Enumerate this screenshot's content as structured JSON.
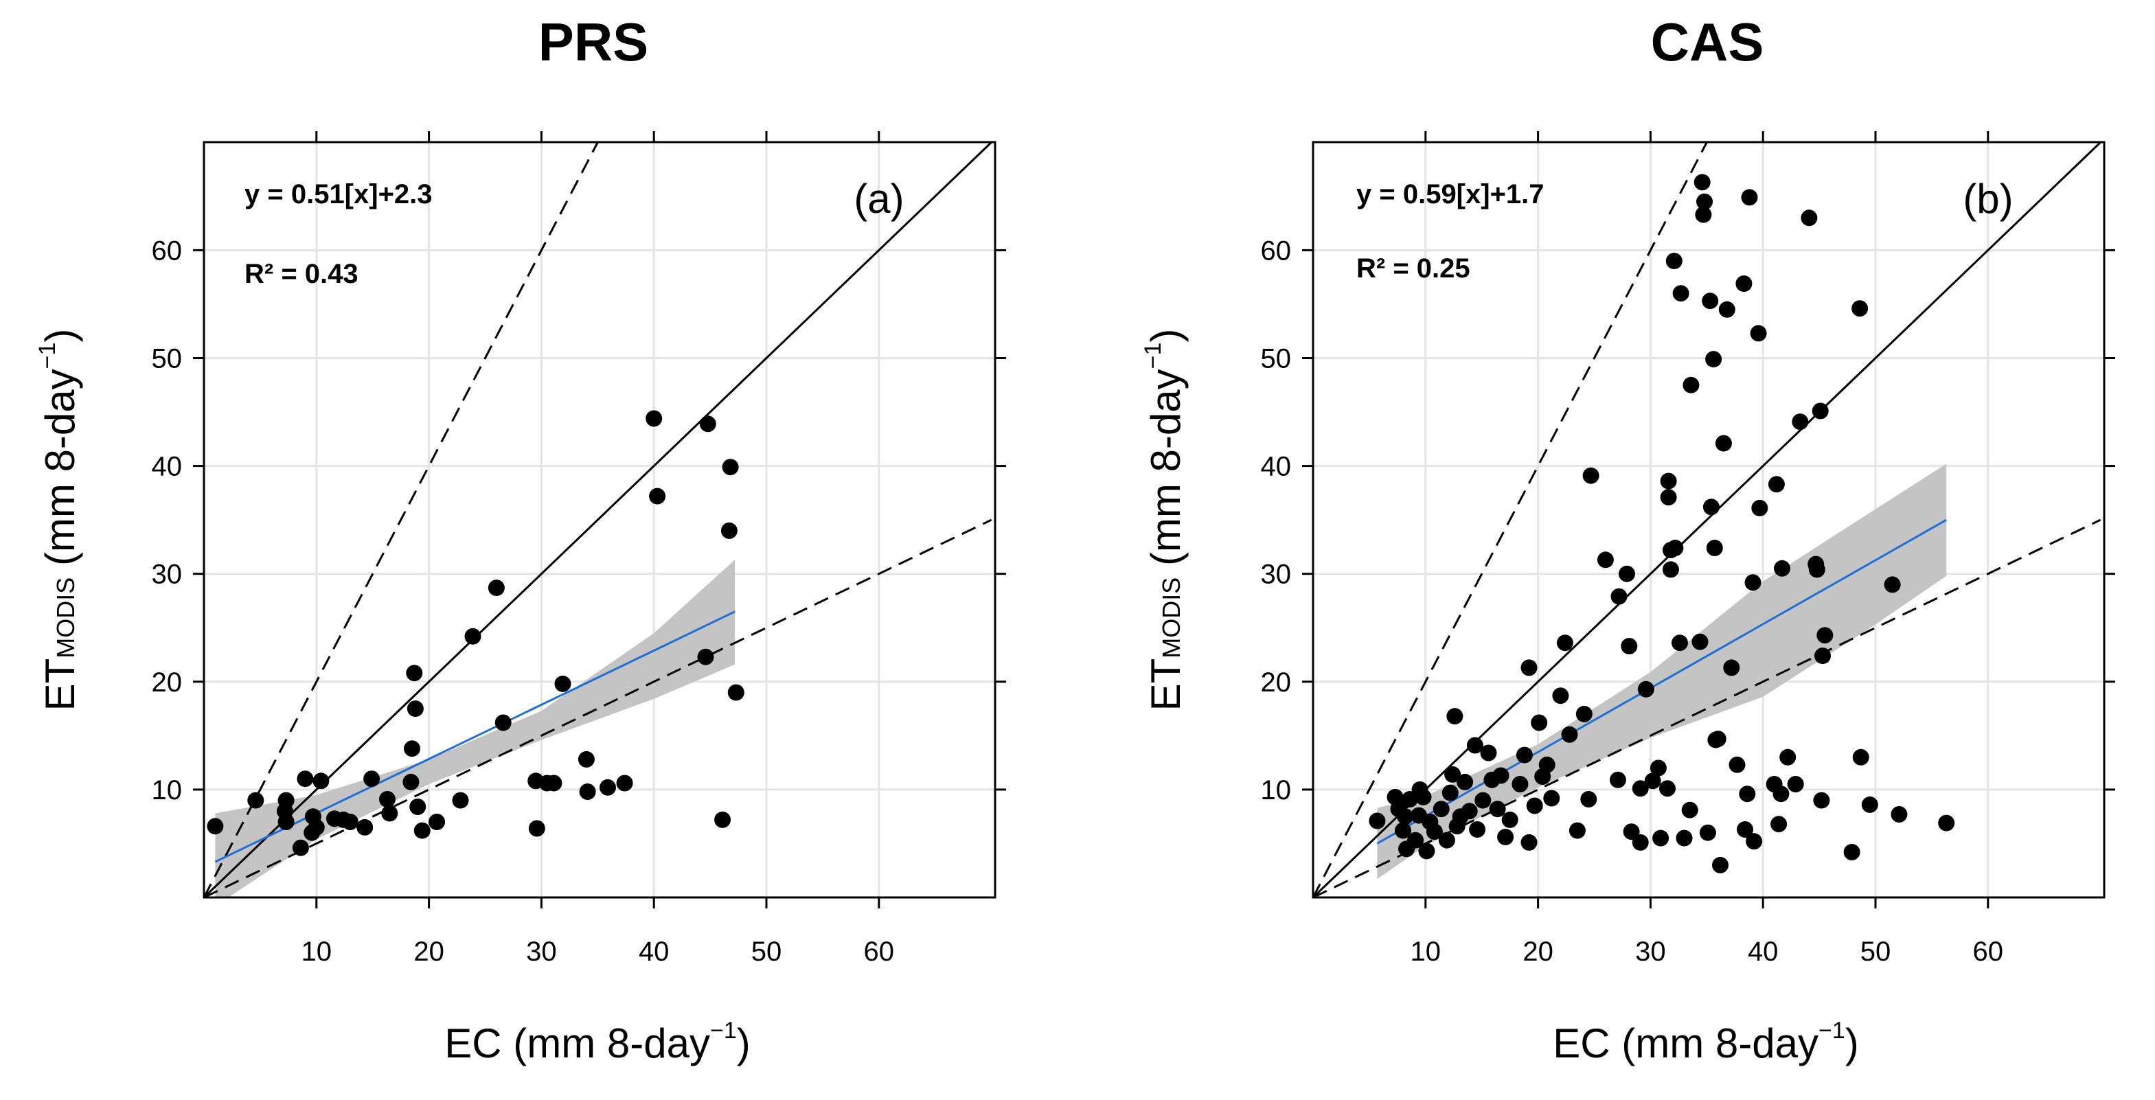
{
  "colors": {
    "points": "#000000",
    "fit_line": "#1f6fd6",
    "confidence_band": "#c4c4c4",
    "grid": "#e4e4e4",
    "frame": "#000000"
  },
  "axis_labels": {
    "x_prefix": "EC (mm 8-day",
    "x_sup": "−1",
    "x_suffix": ")",
    "y_main": "ET",
    "y_sub": "MODIS",
    "y_prefix": " (mm 8-day",
    "y_sup": "−1",
    "y_suffix": ")"
  },
  "chart_data": [
    {
      "type": "scatter",
      "title": "PRS",
      "panel_label": "(a)",
      "equation": "y = 0.51[x]+2.3",
      "r_squared": "R² = 0.43",
      "xlabel": "EC (mm 8-day−1)",
      "ylabel": "ETMODIS (mm 8-day−1)",
      "xlim": [
        0,
        70
      ],
      "ylim": [
        0,
        70
      ],
      "xticks": [
        10,
        20,
        30,
        40,
        50,
        60
      ],
      "yticks": [
        10,
        20,
        30,
        40,
        50,
        60
      ],
      "grid": true,
      "reference_lines": [
        {
          "name": "1:1",
          "slope": 1,
          "style": "solid"
        },
        {
          "name": "2:1",
          "slope": 2,
          "style": "dashed"
        },
        {
          "name": "1:2",
          "slope": 0.5,
          "style": "dashed"
        }
      ],
      "fit": {
        "x0": 1,
        "y0": 3.3,
        "x1": 47.2,
        "y1": 26.5
      },
      "band": {
        "x": [
          1,
          10,
          20,
          30,
          40,
          47.2
        ],
        "upper": [
          7.8,
          9.5,
          12.8,
          17.3,
          24.5,
          31.3
        ],
        "lower": [
          -0.8,
          5.4,
          10.5,
          14.6,
          18.4,
          21.6
        ]
      },
      "points": [
        [
          1,
          6.6
        ],
        [
          4.6,
          9
        ],
        [
          7.3,
          9
        ],
        [
          7.2,
          8
        ],
        [
          7.3,
          7
        ],
        [
          8.6,
          4.6
        ],
        [
          9,
          11
        ],
        [
          9.6,
          6
        ],
        [
          9.7,
          7.5
        ],
        [
          10,
          6.5
        ],
        [
          10.4,
          10.8
        ],
        [
          11.6,
          7.3
        ],
        [
          12.4,
          7.2
        ],
        [
          13,
          7
        ],
        [
          14.3,
          6.5
        ],
        [
          14.9,
          11
        ],
        [
          16.3,
          9.1
        ],
        [
          16.5,
          7.8
        ],
        [
          18.4,
          10.7
        ],
        [
          18.5,
          13.8
        ],
        [
          18.7,
          20.8
        ],
        [
          18.8,
          17.5
        ],
        [
          19,
          8.4
        ],
        [
          19.4,
          6.2
        ],
        [
          20.7,
          7
        ],
        [
          22.8,
          9
        ],
        [
          23.9,
          24.2
        ],
        [
          26,
          28.7
        ],
        [
          26.6,
          16.2
        ],
        [
          29.5,
          10.8
        ],
        [
          29.6,
          6.4
        ],
        [
          30.5,
          10.6
        ],
        [
          31.1,
          10.6
        ],
        [
          31.9,
          19.8
        ],
        [
          34,
          12.8
        ],
        [
          34.1,
          9.8
        ],
        [
          35.9,
          10.2
        ],
        [
          37.4,
          10.6
        ],
        [
          40,
          44.4
        ],
        [
          40.3,
          37.2
        ],
        [
          44.6,
          22.3
        ],
        [
          44.8,
          43.9
        ],
        [
          46.1,
          7.2
        ],
        [
          46.7,
          34
        ],
        [
          46.8,
          39.9
        ],
        [
          47.3,
          19
        ]
      ]
    },
    {
      "type": "scatter",
      "title": "CAS",
      "panel_label": "(b)",
      "equation": "y = 0.59[x]+1.7",
      "r_squared": "R² = 0.25",
      "xlabel": "EC (mm 8-day−1)",
      "ylabel": "ETMODIS (mm 8-day−1)",
      "xlim": [
        0,
        70
      ],
      "ylim": [
        0,
        70
      ],
      "xticks": [
        10,
        20,
        30,
        40,
        50,
        60
      ],
      "yticks": [
        10,
        20,
        30,
        40,
        50,
        60
      ],
      "grid": true,
      "reference_lines": [
        {
          "name": "1:1",
          "slope": 1,
          "style": "solid"
        },
        {
          "name": "2:1",
          "slope": 2,
          "style": "dashed"
        },
        {
          "name": "1:2",
          "slope": 0.5,
          "style": "dashed"
        }
      ],
      "fit": {
        "x0": 5.7,
        "y0": 5,
        "x1": 56.3,
        "y1": 35
      },
      "band": {
        "x": [
          5.7,
          10,
          20,
          30,
          40,
          50,
          56.3
        ],
        "upper": [
          8.3,
          9.4,
          14.2,
          20.9,
          29.3,
          36,
          40.2
        ],
        "lower": [
          1.7,
          4.8,
          10.2,
          14.8,
          18.6,
          25.3,
          29.8
        ]
      },
      "points": [
        [
          5.7,
          7.1
        ],
        [
          7.3,
          9.3
        ],
        [
          7.6,
          8.2
        ],
        [
          8,
          6.2
        ],
        [
          8.2,
          7.5
        ],
        [
          8.3,
          4.5
        ],
        [
          8.6,
          9.1
        ],
        [
          9.1,
          5.3
        ],
        [
          9.4,
          7.6
        ],
        [
          9.5,
          10
        ],
        [
          9.8,
          9.3
        ],
        [
          10.1,
          4.3
        ],
        [
          10.4,
          7
        ],
        [
          10.8,
          6.1
        ],
        [
          11.4,
          8.2
        ],
        [
          11.9,
          5.3
        ],
        [
          12.2,
          9.7
        ],
        [
          12.4,
          11.4
        ],
        [
          12.6,
          16.8
        ],
        [
          12.8,
          6.6
        ],
        [
          13.1,
          7.5
        ],
        [
          13.5,
          10.7
        ],
        [
          13.9,
          8
        ],
        [
          14.4,
          14.1
        ],
        [
          14.6,
          6.3
        ],
        [
          15.1,
          9
        ],
        [
          15.6,
          13.4
        ],
        [
          15.9,
          10.9
        ],
        [
          16.4,
          8.2
        ],
        [
          16.7,
          11.3
        ],
        [
          17.1,
          5.6
        ],
        [
          17.5,
          7.2
        ],
        [
          18.4,
          10.5
        ],
        [
          18.8,
          13.2
        ],
        [
          19.2,
          5.1
        ],
        [
          19.2,
          21.3
        ],
        [
          19.7,
          8.5
        ],
        [
          20.1,
          16.2
        ],
        [
          20.4,
          11.2
        ],
        [
          20.8,
          12.3
        ],
        [
          21.2,
          9.2
        ],
        [
          22,
          18.7
        ],
        [
          22.4,
          23.6
        ],
        [
          22.8,
          15.1
        ],
        [
          23.5,
          6.2
        ],
        [
          24.1,
          17
        ],
        [
          24.5,
          9.1
        ],
        [
          24.7,
          39.1
        ],
        [
          26,
          31.3
        ],
        [
          27.1,
          10.9
        ],
        [
          27.2,
          27.9
        ],
        [
          27.9,
          30
        ],
        [
          28.1,
          23.3
        ],
        [
          28.3,
          6.1
        ],
        [
          29.1,
          5.1
        ],
        [
          29.1,
          10.1
        ],
        [
          29.6,
          19.3
        ],
        [
          30.2,
          10.8
        ],
        [
          30.7,
          12
        ],
        [
          30.9,
          5.5
        ],
        [
          31.5,
          10.1
        ],
        [
          31.6,
          38.6
        ],
        [
          31.6,
          37.1
        ],
        [
          31.8,
          30.4
        ],
        [
          31.8,
          32.2
        ],
        [
          32.1,
          59
        ],
        [
          32.2,
          32.4
        ],
        [
          32.6,
          23.6
        ],
        [
          32.7,
          56
        ],
        [
          33,
          5.5
        ],
        [
          33.5,
          8.1
        ],
        [
          33.6,
          47.5
        ],
        [
          34.4,
          23.7
        ],
        [
          34.6,
          66.3
        ],
        [
          34.7,
          63.3
        ],
        [
          34.8,
          64.5
        ],
        [
          35.1,
          6
        ],
        [
          35.3,
          55.3
        ],
        [
          35.4,
          36.2
        ],
        [
          35.6,
          49.9
        ],
        [
          35.7,
          32.4
        ],
        [
          35.8,
          14.6
        ],
        [
          36,
          14.7
        ],
        [
          36.2,
          3
        ],
        [
          36.5,
          42.1
        ],
        [
          36.8,
          54.5
        ],
        [
          37.2,
          21.3
        ],
        [
          37.7,
          12.3
        ],
        [
          38.3,
          56.9
        ],
        [
          38.4,
          6.3
        ],
        [
          38.6,
          9.6
        ],
        [
          38.8,
          64.9
        ],
        [
          39.1,
          29.2
        ],
        [
          39.2,
          5.2
        ],
        [
          39.6,
          52.3
        ],
        [
          39.7,
          36.1
        ],
        [
          41,
          10.5
        ],
        [
          41.2,
          38.3
        ],
        [
          41.4,
          6.8
        ],
        [
          41.6,
          9.6
        ],
        [
          41.7,
          30.5
        ],
        [
          42.2,
          13
        ],
        [
          42.9,
          10.5
        ],
        [
          43.3,
          44.1
        ],
        [
          44.1,
          63
        ],
        [
          44.7,
          30.9
        ],
        [
          44.8,
          30.4
        ],
        [
          45.1,
          45.1
        ],
        [
          45.2,
          9
        ],
        [
          45.3,
          22.4
        ],
        [
          45.5,
          24.3
        ],
        [
          47.9,
          4.2
        ],
        [
          48.6,
          54.6
        ],
        [
          48.7,
          13
        ],
        [
          49.5,
          8.6
        ],
        [
          51.5,
          29
        ],
        [
          52.1,
          7.7
        ],
        [
          56.3,
          6.9
        ]
      ]
    }
  ]
}
